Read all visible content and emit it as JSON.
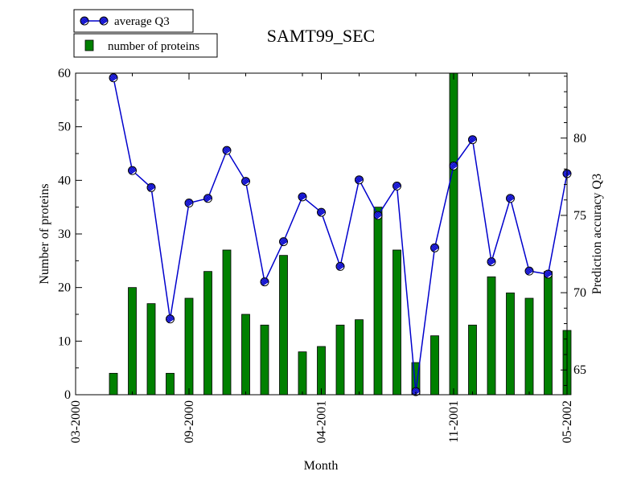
{
  "chart_data": {
    "type": "bar+line",
    "title": "SAMT99_SEC",
    "xlabel": "Month",
    "ylabel_left": "Number of proteins",
    "ylabel_right": "Prediction accuracy Q3",
    "x_ticks": [
      "03-2000",
      "09-2000",
      "04-2001",
      "11-2001",
      "05-2002"
    ],
    "left_yticks": [
      "0",
      "10",
      "20",
      "30",
      "40",
      "50",
      "60"
    ],
    "right_yticks": [
      "65",
      "70",
      "75",
      "80"
    ],
    "ylim_left": [
      0,
      60
    ],
    "ylim_right": [
      63.4,
      84.2
    ],
    "grid": false,
    "legend_position": "top-left",
    "colors": {
      "bars": "#008000",
      "bar_edge": "#000000",
      "line": "#0000cc",
      "marker": "#0000cc"
    },
    "series": [
      {
        "name": "average Q3",
        "kind": "line",
        "axis": "right",
        "values": [
          83.9,
          77.9,
          76.8,
          68.3,
          75.8,
          76.1,
          79.2,
          77.2,
          70.7,
          73.3,
          76.2,
          75.2,
          71.7,
          77.3,
          75.0,
          76.9,
          63.6,
          72.9,
          78.2,
          79.9,
          72.0,
          76.1,
          71.4,
          71.2,
          77.7
        ]
      },
      {
        "name": "number of proteins",
        "kind": "bar",
        "axis": "left",
        "values": [
          4,
          20,
          17,
          4,
          18,
          23,
          27,
          15,
          13,
          26,
          8,
          9,
          13,
          14,
          35,
          27,
          6,
          11,
          60,
          13,
          22,
          19,
          18,
          23,
          12
        ]
      }
    ]
  }
}
